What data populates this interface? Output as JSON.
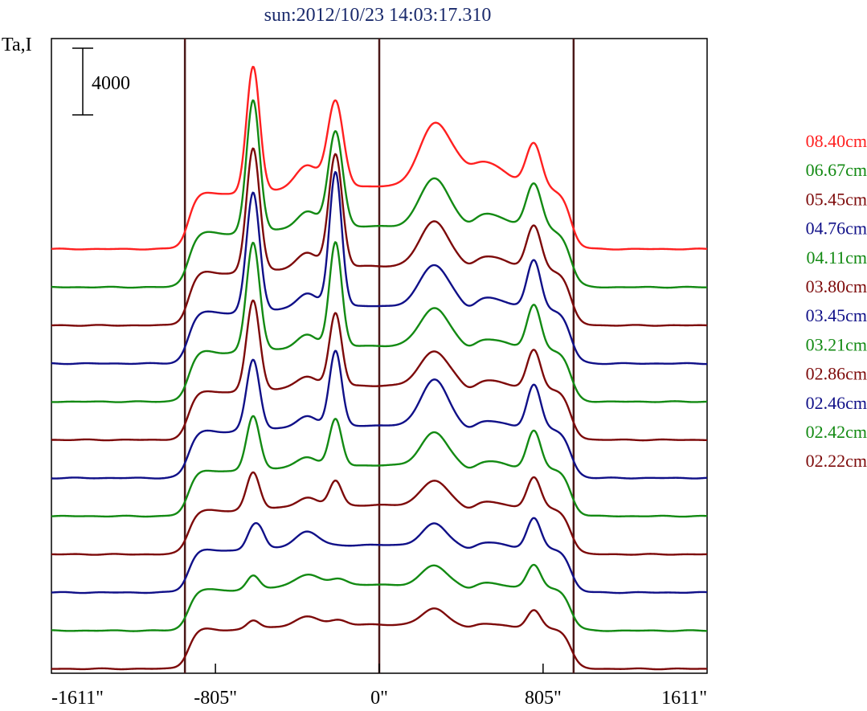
{
  "chart_data": {
    "type": "line",
    "title": "sun:2012/10/23 14:03:17.310",
    "ylabel": "Ta,I",
    "xlabel": "",
    "xlim": [
      -1611,
      1611
    ],
    "x_ticks": [
      {
        "value": -1611,
        "label": "-1611\""
      },
      {
        "value": -805,
        "label": "-805\""
      },
      {
        "value": 0,
        "label": "0\""
      },
      {
        "value": 805,
        "label": "805\""
      },
      {
        "value": 1611,
        "label": "1611\""
      }
    ],
    "limb_lines": [
      -955,
      0,
      955
    ],
    "scale_bar": {
      "value": 4000,
      "label": "4000"
    },
    "series_offset_Ta": 3100,
    "colors": {
      "red": "#ff2020",
      "green": "#138a13",
      "darkred": "#7d0a0a",
      "blue": "#101088",
      "frame": "#000000",
      "limb": "#4a1818",
      "title": "#1a2a6c"
    },
    "series": [
      {
        "name": "08.40cm",
        "color": "red",
        "baseline": 0.0,
        "disk": 9700,
        "plateau": 7500,
        "peaks": [
          [
            -620,
            15100,
            32
          ],
          [
            -215,
            10300,
            38
          ],
          [
            -355,
            2800,
            55
          ],
          [
            270,
            6800,
            75
          ],
          [
            500,
            3500,
            140
          ],
          [
            760,
            5500,
            38
          ]
        ],
        "dips": [
          [
            440,
            -600,
            35
          ]
        ]
      },
      {
        "name": "06.67cm",
        "color": "green",
        "baseline": 0.0,
        "disk": 9500,
        "plateau": 7300,
        "peaks": [
          [
            -620,
            15800,
            32
          ],
          [
            -215,
            11500,
            35
          ],
          [
            -355,
            2000,
            50
          ],
          [
            270,
            5800,
            70
          ],
          [
            540,
            2000,
            110
          ],
          [
            760,
            5800,
            38
          ]
        ],
        "dips": [
          [
            440,
            -700,
            35
          ]
        ]
      },
      {
        "name": "05.45cm",
        "color": "darkred",
        "baseline": 0.0,
        "disk": 9300,
        "plateau": 7100,
        "peaks": [
          [
            -620,
            14800,
            32
          ],
          [
            -215,
            13500,
            33
          ],
          [
            -355,
            1800,
            50
          ],
          [
            270,
            5400,
            70
          ],
          [
            540,
            1700,
            110
          ],
          [
            760,
            5500,
            36
          ]
        ],
        "dips": [
          [
            440,
            -800,
            35
          ]
        ]
      },
      {
        "name": "04.76cm",
        "color": "blue",
        "baseline": 0.0,
        "disk": 9100,
        "plateau": 6900,
        "peaks": [
          [
            -620,
            14200,
            32
          ],
          [
            -215,
            16200,
            30
          ],
          [
            -355,
            1700,
            48
          ],
          [
            270,
            5000,
            70
          ],
          [
            540,
            1500,
            110
          ],
          [
            760,
            6200,
            34
          ]
        ],
        "dips": [
          [
            440,
            -900,
            35
          ]
        ]
      },
      {
        "name": "04.11cm",
        "color": "green",
        "baseline": 0.0,
        "disk": 8900,
        "plateau": 6700,
        "peaks": [
          [
            -620,
            13000,
            32
          ],
          [
            -215,
            12500,
            30
          ],
          [
            -355,
            1500,
            48
          ],
          [
            270,
            4600,
            70
          ],
          [
            540,
            1300,
            110
          ],
          [
            760,
            5600,
            34
          ]
        ],
        "dips": [
          [
            440,
            -800,
            35
          ]
        ]
      },
      {
        "name": "03.80cm",
        "color": "darkred",
        "baseline": 0.0,
        "disk": 8700,
        "plateau": 6500,
        "peaks": [
          [
            -620,
            10800,
            32
          ],
          [
            -215,
            8800,
            30
          ],
          [
            -355,
            1300,
            48
          ],
          [
            270,
            4200,
            70
          ],
          [
            540,
            1100,
            110
          ],
          [
            760,
            5000,
            34
          ]
        ],
        "dips": [
          [
            440,
            -800,
            35
          ]
        ]
      },
      {
        "name": "03.45cm",
        "color": "blue",
        "baseline": 0.0,
        "disk": 8500,
        "plateau": 6300,
        "peaks": [
          [
            -620,
            8500,
            32
          ],
          [
            -215,
            9000,
            30
          ],
          [
            -355,
            1300,
            48
          ],
          [
            270,
            5600,
            65
          ],
          [
            540,
            1000,
            110
          ],
          [
            760,
            5600,
            34
          ]
        ],
        "dips": [
          [
            440,
            -700,
            35
          ]
        ]
      },
      {
        "name": "03.21cm",
        "color": "green",
        "baseline": 0.0,
        "disk": 8300,
        "plateau": 6100,
        "peaks": [
          [
            -620,
            6500,
            32
          ],
          [
            -215,
            5600,
            30
          ],
          [
            -355,
            1200,
            48
          ],
          [
            270,
            4000,
            65
          ],
          [
            540,
            900,
            110
          ],
          [
            760,
            4800,
            34
          ]
        ],
        "dips": [
          [
            440,
            -700,
            35
          ]
        ]
      },
      {
        "name": "02.86cm",
        "color": "darkred",
        "baseline": 0.0,
        "disk": 8100,
        "plateau": 5900,
        "peaks": [
          [
            -620,
            4500,
            32
          ],
          [
            -215,
            3000,
            30
          ],
          [
            -355,
            1100,
            48
          ],
          [
            270,
            3000,
            65
          ],
          [
            540,
            800,
            110
          ],
          [
            760,
            4000,
            34
          ]
        ],
        "dips": [
          [
            440,
            -600,
            35
          ]
        ]
      },
      {
        "name": "02.46cm",
        "color": "blue",
        "baseline": 0.0,
        "disk": 7900,
        "plateau": 5700,
        "peaks": [
          [
            -620,
            2600,
            30
          ],
          [
            -580,
            1400,
            25
          ],
          [
            -355,
            1800,
            55
          ],
          [
            270,
            2600,
            60
          ],
          [
            540,
            700,
            110
          ],
          [
            760,
            3800,
            34
          ]
        ],
        "dips": [
          [
            440,
            -600,
            35
          ]
        ]
      },
      {
        "name": "02.42cm",
        "color": "green",
        "baseline": 0.0,
        "disk": 7700,
        "plateau": 5500,
        "peaks": [
          [
            -620,
            1600,
            30
          ],
          [
            -355,
            1400,
            60
          ],
          [
            -200,
            800,
            40
          ],
          [
            270,
            2400,
            60
          ],
          [
            540,
            600,
            110
          ],
          [
            760,
            3000,
            34
          ]
        ],
        "dips": [
          [
            440,
            -500,
            35
          ]
        ]
      },
      {
        "name": "02.22cm",
        "color": "darkred",
        "baseline": 0.0,
        "disk": 7500,
        "plateau": 5300,
        "peaks": [
          [
            -620,
            1000,
            30
          ],
          [
            -355,
            1100,
            60
          ],
          [
            -200,
            600,
            40
          ],
          [
            270,
            2000,
            60
          ],
          [
            540,
            500,
            110
          ],
          [
            760,
            2300,
            34
          ]
        ],
        "dips": [
          [
            440,
            -400,
            35
          ]
        ]
      }
    ]
  }
}
